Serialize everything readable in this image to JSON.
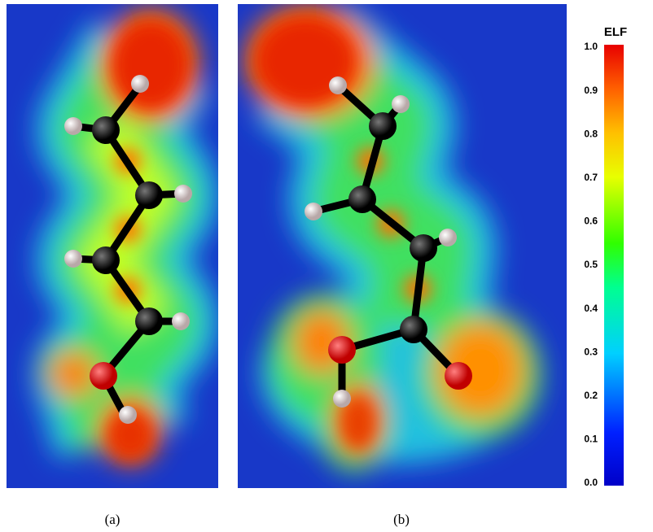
{
  "panels": [
    {
      "label": "(a)"
    },
    {
      "label": "(b)"
    }
  ],
  "colorbar": {
    "title": "ELF",
    "ylim": [
      0,
      1
    ],
    "yticks": [
      {
        "value": 0,
        "label": "0.0"
      },
      0.1,
      0.2,
      0.3,
      0.4,
      0.5,
      0.6,
      0.7,
      0.8,
      0.9,
      {
        "value": 1,
        "label": "1.0"
      }
    ]
  }
}
